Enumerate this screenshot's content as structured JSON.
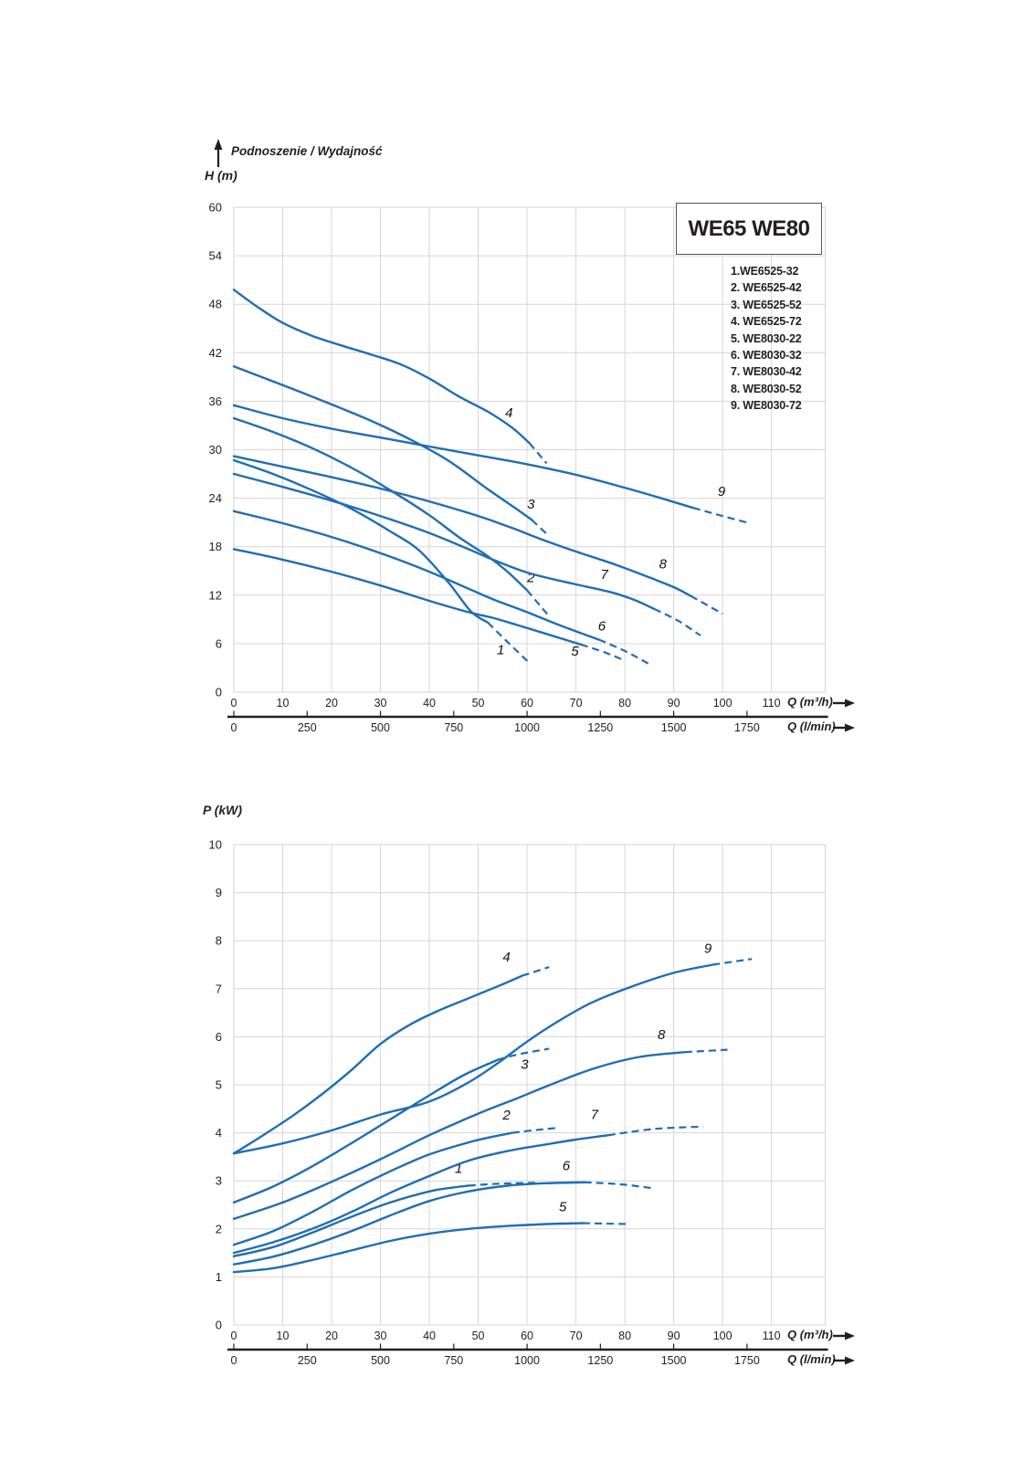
{
  "colors": {
    "curve": "#1f6eb3",
    "grid": "#d6d6d6",
    "text": "#231f20",
    "thick_axis": "#231f20",
    "legend_border": "#55565a"
  },
  "top_chart_header": {
    "title": "Podnoszenie / Wydajność",
    "y_axis_name": "H (m)"
  },
  "bottom_chart_header": {
    "y_axis_name": "P (kW)"
  },
  "axis_units": {
    "flow_m3h": "Q (m³/h)",
    "flow_lmin": "Q (l/min)"
  },
  "legend": {
    "title": "WE65 WE80",
    "items": [
      "1.WE6525-32",
      "2. WE6525-42",
      "3. WE6525-52",
      "4. WE6525-72",
      "5. WE8030-22",
      "6. WE8030-32",
      "7. WE8030-42",
      "8. WE8030-52",
      "9. WE8030-72"
    ]
  },
  "chart_data": [
    {
      "type": "line",
      "title": "Podnoszenie / Wydajność",
      "xlabel": "Q (m³/h)",
      "xlabel2": "Q (l/min)",
      "ylabel": "H (m)",
      "xlim": [
        0,
        121
      ],
      "ylim": [
        0,
        60
      ],
      "grid": true,
      "xticks": [
        0,
        10,
        20,
        30,
        40,
        50,
        60,
        70,
        80,
        90,
        100,
        110
      ],
      "x2ticks": [
        0,
        250,
        500,
        750,
        1000,
        1250,
        1500,
        1750
      ],
      "yticks": [
        0,
        6,
        12,
        18,
        24,
        30,
        36,
        42,
        48,
        54,
        60
      ],
      "series": [
        {
          "name": "1",
          "label_at": [
            54.6,
            4.7
          ],
          "solid": [
            [
              0,
              28.7
            ],
            [
              8,
              27.0
            ],
            [
              16,
              25.0
            ],
            [
              24,
              22.7
            ],
            [
              32,
              19.9
            ],
            [
              38,
              17.5
            ],
            [
              44,
              13.5
            ],
            [
              48.5,
              10.0
            ],
            [
              52,
              8.6
            ]
          ],
          "dash": [
            [
              56,
              6.2
            ],
            [
              60.5,
              3.6
            ]
          ]
        },
        {
          "name": "2",
          "label_at": [
            60.8,
            13.6
          ],
          "solid": [
            [
              0,
              33.9
            ],
            [
              8,
              32.2
            ],
            [
              16,
              30.2
            ],
            [
              24,
              27.8
            ],
            [
              32,
              25.0
            ],
            [
              40,
              21.9
            ],
            [
              46,
              19.2
            ],
            [
              52,
              16.8
            ],
            [
              56,
              14.9
            ],
            [
              60,
              12.6
            ]
          ],
          "dash": [
            [
              64.5,
              9.4
            ]
          ]
        },
        {
          "name": "3",
          "label_at": [
            60.8,
            22.7
          ],
          "solid": [
            [
              0,
              40.3
            ],
            [
              10,
              38.0
            ],
            [
              20,
              35.6
            ],
            [
              28,
              33.6
            ],
            [
              36,
              31.3
            ],
            [
              44,
              28.6
            ],
            [
              52,
              25.1
            ],
            [
              58,
              22.6
            ],
            [
              61,
              21.3
            ]
          ],
          "dash": [
            [
              64.5,
              19.3
            ]
          ]
        },
        {
          "name": "4",
          "label_at": [
            56.3,
            34.0
          ],
          "solid": [
            [
              0,
              49.8
            ],
            [
              5,
              47.6
            ],
            [
              10,
              45.7
            ],
            [
              16,
              44.1
            ],
            [
              22,
              42.9
            ],
            [
              28,
              41.8
            ],
            [
              34,
              40.6
            ],
            [
              40,
              38.8
            ],
            [
              46,
              36.6
            ],
            [
              52,
              34.7
            ],
            [
              57,
              32.7
            ],
            [
              60.5,
              30.8
            ]
          ],
          "dash": [
            [
              64,
              28.3
            ]
          ]
        },
        {
          "name": "5",
          "label_at": [
            69.8,
            4.5
          ],
          "solid": [
            [
              0,
              17.7
            ],
            [
              10,
              16.4
            ],
            [
              20,
              14.9
            ],
            [
              30,
              13.2
            ],
            [
              40,
              11.3
            ],
            [
              48,
              9.9
            ],
            [
              53,
              9.2
            ],
            [
              58,
              8.3
            ],
            [
              64,
              7.2
            ],
            [
              71,
              5.9
            ]
          ],
          "dash": [
            [
              76,
              4.9
            ],
            [
              80,
              3.9
            ]
          ]
        },
        {
          "name": "6",
          "label_at": [
            75.3,
            7.6
          ],
          "solid": [
            [
              0,
              22.4
            ],
            [
              10,
              20.9
            ],
            [
              20,
              19.2
            ],
            [
              30,
              17.2
            ],
            [
              40,
              14.9
            ],
            [
              48,
              12.8
            ],
            [
              53,
              11.5
            ],
            [
              60,
              9.9
            ],
            [
              67,
              8.2
            ],
            [
              74.7,
              6.5
            ]
          ],
          "dash": [
            [
              80,
              5.1
            ],
            [
              84.9,
              3.5
            ]
          ]
        },
        {
          "name": "7",
          "label_at": [
            75.8,
            14.0
          ],
          "solid": [
            [
              0,
              27.0
            ],
            [
              10,
              25.4
            ],
            [
              20,
              23.7
            ],
            [
              30,
              21.8
            ],
            [
              40,
              19.7
            ],
            [
              48,
              17.7
            ],
            [
              53,
              16.4
            ],
            [
              60,
              14.8
            ],
            [
              68,
              13.6
            ],
            [
              77,
              12.4
            ],
            [
              82,
              11.4
            ],
            [
              86,
              10.3
            ]
          ],
          "dash": [
            [
              91,
              8.8
            ],
            [
              95.5,
              7.0
            ]
          ]
        },
        {
          "name": "8",
          "label_at": [
            87.8,
            15.3
          ],
          "solid": [
            [
              0,
              29.2
            ],
            [
              10,
              27.9
            ],
            [
              20,
              26.6
            ],
            [
              30,
              25.2
            ],
            [
              40,
              23.6
            ],
            [
              50,
              21.8
            ],
            [
              57,
              20.3
            ],
            [
              63,
              18.9
            ],
            [
              70,
              17.4
            ],
            [
              78,
              15.8
            ],
            [
              85,
              14.2
            ],
            [
              90,
              13.0
            ],
            [
              93.5,
              11.9
            ]
          ],
          "dash": [
            [
              100,
              9.7
            ]
          ]
        },
        {
          "name": "9",
          "label_at": [
            99.8,
            24.3
          ],
          "solid": [
            [
              0,
              35.5
            ],
            [
              10,
              33.9
            ],
            [
              20,
              32.6
            ],
            [
              30,
              31.5
            ],
            [
              40,
              30.4
            ],
            [
              50,
              29.3
            ],
            [
              60,
              28.2
            ],
            [
              70,
              26.9
            ],
            [
              80,
              25.3
            ],
            [
              88,
              23.9
            ],
            [
              94,
              22.8
            ]
          ],
          "dash": [
            [
              100,
              21.8
            ],
            [
              105.5,
              20.9
            ]
          ]
        }
      ]
    },
    {
      "type": "line",
      "title": "P (kW)",
      "xlabel": "Q (m³/h)",
      "xlabel2": "Q (l/min)",
      "ylabel": "P (kW)",
      "xlim": [
        0,
        121
      ],
      "ylim": [
        0,
        10
      ],
      "grid": true,
      "xticks": [
        0,
        10,
        20,
        30,
        40,
        50,
        60,
        70,
        80,
        90,
        100,
        110
      ],
      "x2ticks": [
        0,
        250,
        500,
        750,
        1000,
        1250,
        1500,
        1750
      ],
      "yticks": [
        0,
        1,
        2,
        3,
        4,
        5,
        6,
        7,
        8,
        9,
        10
      ],
      "series": [
        {
          "name": "1",
          "label_at": [
            46.0,
            3.17
          ],
          "solid": [
            [
              0,
              1.43
            ],
            [
              8,
              1.62
            ],
            [
              16,
              1.92
            ],
            [
              24,
              2.25
            ],
            [
              32,
              2.55
            ],
            [
              40,
              2.78
            ],
            [
              44,
              2.85
            ],
            [
              48,
              2.9
            ]
          ],
          "dash": [
            [
              54,
              2.94
            ],
            [
              62,
              2.96
            ]
          ]
        },
        {
          "name": "2",
          "label_at": [
            55.8,
            4.28
          ],
          "solid": [
            [
              0,
              1.67
            ],
            [
              8,
              1.95
            ],
            [
              16,
              2.35
            ],
            [
              24,
              2.8
            ],
            [
              32,
              3.2
            ],
            [
              40,
              3.55
            ],
            [
              48,
              3.8
            ],
            [
              53,
              3.92
            ],
            [
              57,
              4.0
            ]
          ],
          "dash": [
            [
              61,
              4.05
            ],
            [
              66,
              4.1
            ]
          ]
        },
        {
          "name": "3",
          "label_at": [
            59.5,
            5.33
          ],
          "solid": [
            [
              0,
              2.55
            ],
            [
              8,
              2.88
            ],
            [
              16,
              3.3
            ],
            [
              24,
              3.78
            ],
            [
              32,
              4.28
            ],
            [
              40,
              4.78
            ],
            [
              47,
              5.2
            ],
            [
              54,
              5.52
            ]
          ],
          "dash": [
            [
              58,
              5.63
            ],
            [
              64.5,
              5.75
            ]
          ]
        },
        {
          "name": "4",
          "label_at": [
            55.8,
            7.57
          ],
          "solid": [
            [
              0,
              3.57
            ],
            [
              6,
              3.95
            ],
            [
              12,
              4.35
            ],
            [
              18,
              4.8
            ],
            [
              24,
              5.3
            ],
            [
              30,
              5.85
            ],
            [
              36,
              6.25
            ],
            [
              42,
              6.55
            ],
            [
              48,
              6.8
            ],
            [
              54,
              7.05
            ],
            [
              59,
              7.27
            ]
          ],
          "dash": [
            [
              64.5,
              7.45
            ]
          ]
        },
        {
          "name": "5",
          "label_at": [
            67.3,
            2.37
          ],
          "solid": [
            [
              0,
              1.1
            ],
            [
              8,
              1.18
            ],
            [
              16,
              1.35
            ],
            [
              24,
              1.55
            ],
            [
              32,
              1.75
            ],
            [
              40,
              1.9
            ],
            [
              48,
              2.0
            ],
            [
              56,
              2.06
            ],
            [
              64,
              2.1
            ],
            [
              71.4,
              2.12
            ]
          ],
          "dash": [
            [
              81,
              2.1
            ]
          ]
        },
        {
          "name": "6",
          "label_at": [
            68.0,
            3.22
          ],
          "solid": [
            [
              0,
              1.26
            ],
            [
              8,
              1.42
            ],
            [
              16,
              1.66
            ],
            [
              24,
              1.95
            ],
            [
              32,
              2.28
            ],
            [
              40,
              2.58
            ],
            [
              48,
              2.78
            ],
            [
              56,
              2.9
            ],
            [
              64,
              2.95
            ],
            [
              71.7,
              2.97
            ]
          ],
          "dash": [
            [
              79,
              2.93
            ],
            [
              85.5,
              2.85
            ]
          ]
        },
        {
          "name": "7",
          "label_at": [
            73.8,
            4.29
          ],
          "solid": [
            [
              0,
              1.5
            ],
            [
              8,
              1.72
            ],
            [
              16,
              2.0
            ],
            [
              24,
              2.35
            ],
            [
              32,
              2.75
            ],
            [
              40,
              3.1
            ],
            [
              48,
              3.42
            ],
            [
              56,
              3.62
            ],
            [
              64,
              3.76
            ],
            [
              70,
              3.86
            ],
            [
              76.6,
              3.95
            ]
          ],
          "dash": [
            [
              86,
              4.08
            ],
            [
              96,
              4.13
            ]
          ]
        },
        {
          "name": "8",
          "label_at": [
            87.5,
            5.95
          ],
          "solid": [
            [
              0,
              2.21
            ],
            [
              10,
              2.55
            ],
            [
              20,
              2.98
            ],
            [
              30,
              3.45
            ],
            [
              40,
              3.95
            ],
            [
              50,
              4.4
            ],
            [
              58,
              4.72
            ],
            [
              66,
              5.05
            ],
            [
              74,
              5.35
            ],
            [
              83,
              5.58
            ],
            [
              92.3,
              5.68
            ]
          ],
          "dash": [
            [
              101,
              5.73
            ]
          ]
        },
        {
          "name": "9",
          "label_at": [
            97.0,
            7.75
          ],
          "solid": [
            [
              0,
              3.57
            ],
            [
              10,
              3.78
            ],
            [
              20,
              4.05
            ],
            [
              30,
              4.38
            ],
            [
              40,
              4.65
            ],
            [
              48,
              5.05
            ],
            [
              54,
              5.45
            ],
            [
              60,
              5.9
            ],
            [
              66,
              6.3
            ],
            [
              73,
              6.7
            ],
            [
              81,
              7.03
            ],
            [
              90,
              7.33
            ],
            [
              98,
              7.5
            ]
          ],
          "dash": [
            [
              106,
              7.62
            ]
          ]
        }
      ]
    }
  ]
}
